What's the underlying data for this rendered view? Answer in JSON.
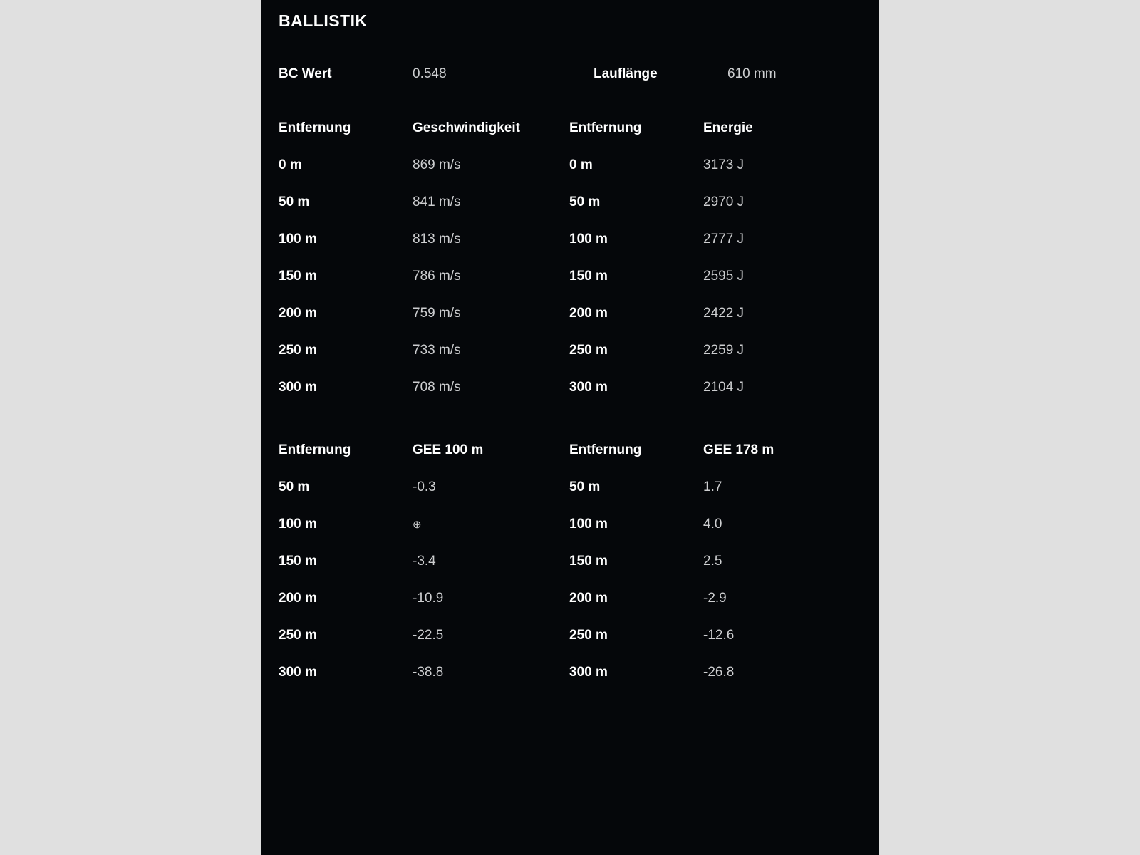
{
  "title": "BALLISTIK",
  "top": {
    "bc_label": "BC Wert",
    "bc_value": "0.548",
    "barrel_label": "Lauflänge",
    "barrel_value": "610 mm"
  },
  "tables": [
    {
      "dist_header": "Entfernung",
      "val_header": "Geschwindigkeit",
      "rows": [
        {
          "dist": "0 m",
          "val": "869 m/s"
        },
        {
          "dist": "50 m",
          "val": "841 m/s"
        },
        {
          "dist": "100 m",
          "val": "813 m/s"
        },
        {
          "dist": "150 m",
          "val": "786 m/s"
        },
        {
          "dist": "200 m",
          "val": "759 m/s"
        },
        {
          "dist": "250 m",
          "val": "733 m/s"
        },
        {
          "dist": "300 m",
          "val": "708 m/s"
        }
      ]
    },
    {
      "dist_header": "Entfernung",
      "val_header": "Energie",
      "rows": [
        {
          "dist": "0 m",
          "val": "3173 J"
        },
        {
          "dist": "50 m",
          "val": "2970 J"
        },
        {
          "dist": "100 m",
          "val": "2777 J"
        },
        {
          "dist": "150 m",
          "val": "2595 J"
        },
        {
          "dist": "200 m",
          "val": "2422 J"
        },
        {
          "dist": "250 m",
          "val": "2259 J"
        },
        {
          "dist": "300 m",
          "val": "2104 J"
        }
      ]
    },
    {
      "dist_header": "Entfernung",
      "val_header": "GEE 100 m",
      "rows": [
        {
          "dist": "50 m",
          "val": "-0.3"
        },
        {
          "dist": "100 m",
          "val": "⊕"
        },
        {
          "dist": "150 m",
          "val": "-3.4"
        },
        {
          "dist": "200 m",
          "val": "-10.9"
        },
        {
          "dist": "250 m",
          "val": "-22.5"
        },
        {
          "dist": "300 m",
          "val": "-38.8"
        }
      ]
    },
    {
      "dist_header": "Entfernung",
      "val_header": "GEE 178 m",
      "rows": [
        {
          "dist": "50 m",
          "val": "1.7"
        },
        {
          "dist": "100 m",
          "val": "4.0"
        },
        {
          "dist": "150 m",
          "val": "2.5"
        },
        {
          "dist": "200 m",
          "val": "-2.9"
        },
        {
          "dist": "250 m",
          "val": "-12.6"
        },
        {
          "dist": "300 m",
          "val": "-26.8"
        }
      ]
    }
  ]
}
